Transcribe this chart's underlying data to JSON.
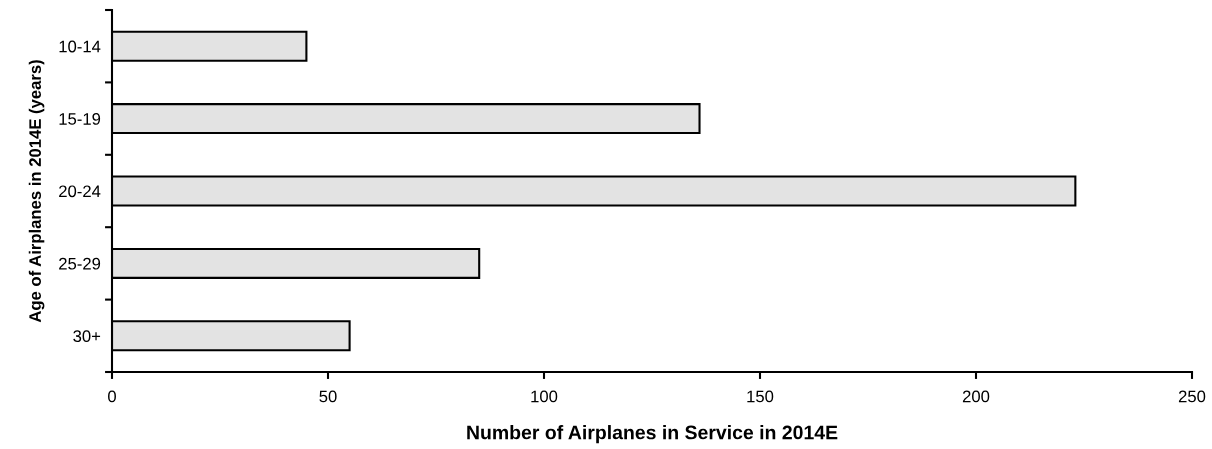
{
  "chart_data": {
    "type": "bar",
    "orientation": "horizontal",
    "categories": [
      "10-14",
      "15-19",
      "20-24",
      "25-29",
      "30+"
    ],
    "values": [
      45,
      136,
      223,
      85,
      55
    ],
    "color": "#e3e3e3",
    "xlabel": "Number of Airplanes in Service in 2014E",
    "ylabel": "Age of Airplanes in 2014E (years)",
    "xlim": [
      0,
      250
    ],
    "xticks": [
      0,
      50,
      100,
      150,
      200,
      250
    ],
    "grid": false,
    "legend": false
  }
}
